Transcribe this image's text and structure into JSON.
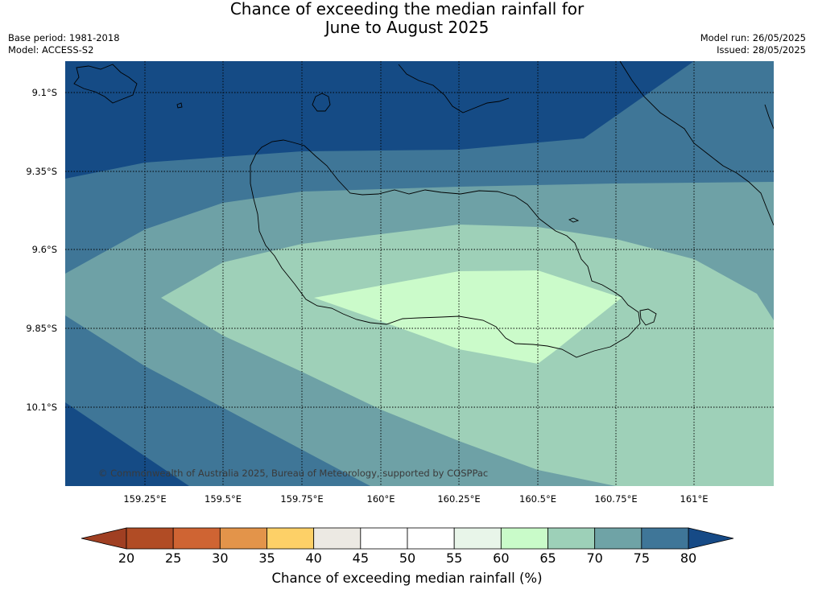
{
  "title_line1": "Chance of exceeding the median rainfall for",
  "title_line2": "June to August 2025",
  "base_period": "Base period: 1981-2018",
  "model": "Model: ACCESS-S2",
  "model_run": "Model run: 26/05/2025",
  "issued": "Issued: 28/05/2025",
  "copyright": "© Commonwealth of Australia 2025, Bureau of Meteorology, supported by COSPPac",
  "lat_labels": [
    "9.1°S",
    "9.35°S",
    "9.6°S",
    "9.85°S",
    "10.1°S"
  ],
  "lon_labels": [
    "159.25°E",
    "159.5°E",
    "159.75°E",
    "160°E",
    "160.25°E",
    "160.5°E",
    "160.75°E",
    "161°E"
  ],
  "colorbar": {
    "label": "Chance of exceeding median rainfall (%)",
    "ticks": [
      "20",
      "25",
      "30",
      "35",
      "40",
      "45",
      "50",
      "55",
      "60",
      "65",
      "70",
      "75",
      "80"
    ],
    "below_color": "#a03f22",
    "above_color": "#164a86",
    "bins": [
      "#b14c25",
      "#cf6433",
      "#e3944a",
      "#fdd067",
      "#ece9e3",
      "#ffffff",
      "#ffffff",
      "#e8f5e9",
      "#c9fbc9",
      "#9dd0b8",
      "#6fa3a6",
      "#3f7698"
    ]
  },
  "contour_colors": {
    "c80": "#154b85",
    "c75": "#3f7697",
    "c70": "#6ea1a6",
    "c65": "#9ed0b8",
    "c60": "#cbfbca"
  }
}
